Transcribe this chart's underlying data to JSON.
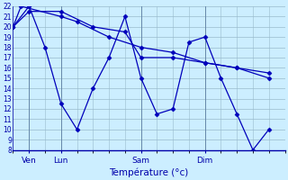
{
  "xlabel": "Température (°c)",
  "background_color": "#cceeff",
  "grid_color": "#99bbcc",
  "line_color": "#0000bb",
  "ylim": [
    8,
    22
  ],
  "yticks": [
    8,
    9,
    10,
    11,
    12,
    13,
    14,
    15,
    16,
    17,
    18,
    19,
    20,
    21,
    22
  ],
  "xtick_labels": [
    "Ven",
    "Lun",
    "Sam",
    "Dim"
  ],
  "xtick_positions": [
    1,
    3,
    8,
    12
  ],
  "vlines": [
    1,
    3,
    8,
    12
  ],
  "xlim": [
    0,
    17
  ],
  "line1_x": [
    0,
    1,
    3,
    5,
    7,
    8,
    10,
    12,
    14,
    16
  ],
  "line1_y": [
    20,
    21.5,
    21.5,
    20,
    19.5,
    17,
    17,
    16.5,
    16,
    15
  ],
  "line2_x": [
    0,
    0.5,
    3,
    4,
    6,
    8,
    10,
    12,
    14,
    16
  ],
  "line2_y": [
    20,
    22,
    21,
    20.5,
    19,
    18,
    17.5,
    16.5,
    16,
    15.5
  ],
  "line3_x": [
    0,
    1,
    2,
    3,
    4,
    5,
    6,
    7,
    8,
    9,
    10,
    11,
    12,
    13,
    14,
    15,
    16
  ],
  "line3_y": [
    20,
    22,
    18,
    12.5,
    10,
    14,
    17,
    21,
    15,
    11.5,
    12,
    18.5,
    19,
    15,
    11.5,
    8,
    10
  ]
}
